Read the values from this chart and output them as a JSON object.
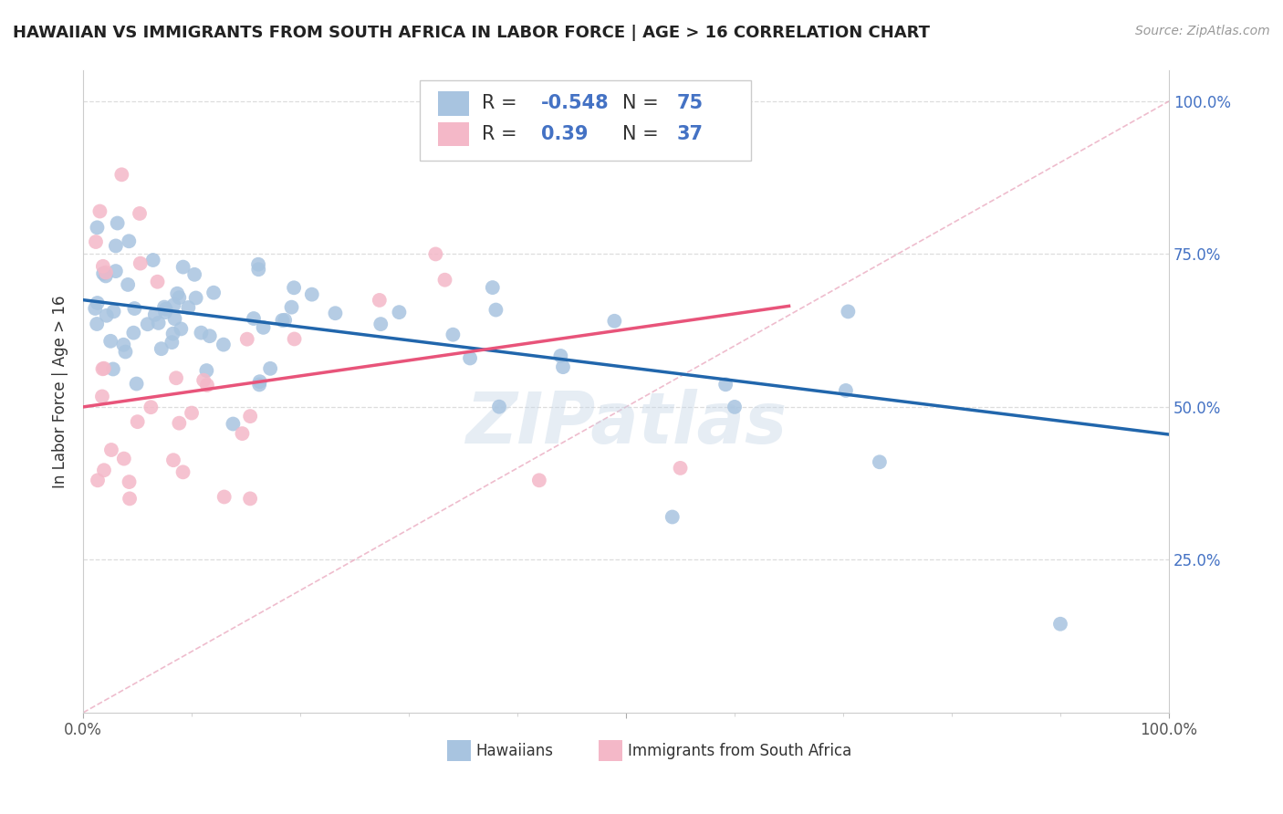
{
  "title": "HAWAIIAN VS IMMIGRANTS FROM SOUTH AFRICA IN LABOR FORCE | AGE > 16 CORRELATION CHART",
  "source": "Source: ZipAtlas.com",
  "ylabel": "In Labor Force | Age > 16",
  "xlim": [
    0.0,
    1.0
  ],
  "ylim": [
    0.0,
    1.05
  ],
  "hawaiians_color": "#a8c4e0",
  "immigrants_color": "#f4b8c8",
  "hawaiians_line_color": "#2166ac",
  "immigrants_line_color": "#e8547a",
  "diagonal_color": "#e8a0b8",
  "R_hawaiians": -0.548,
  "N_hawaiians": 75,
  "R_immigrants": 0.39,
  "N_immigrants": 37,
  "watermark": "ZIPatlas",
  "legend_blue_label": "Hawaiians",
  "legend_pink_label": "Immigrants from South Africa",
  "title_fontsize": 13,
  "axis_label_color": "#555555",
  "right_tick_color": "#4472c4",
  "grid_color": "#dddddd",
  "watermark_color": "#c8d8e8",
  "hawaiian_line_start_y": 0.675,
  "hawaiian_line_end_y": 0.455,
  "immigrant_line_start_y": 0.5,
  "immigrant_line_end_y": 0.665
}
